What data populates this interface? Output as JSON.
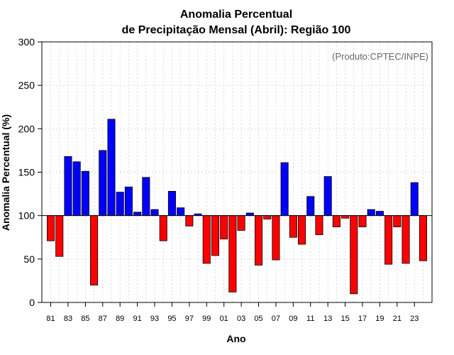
{
  "chart_data": {
    "type": "bar",
    "title": "Anomalia Percentual",
    "subtitle": "de Precipitação Mensal (Abril): Região 100",
    "xlabel": "Ano",
    "ylabel": "Anomalia Percentual (%)",
    "credit": "(Produto:CPTEC/INPE)",
    "baseline": 100,
    "ylim": [
      0,
      300
    ],
    "yticks": [
      0,
      50,
      100,
      150,
      200,
      250,
      300
    ],
    "grid": true,
    "categories": [
      "1981",
      "1982",
      "1983",
      "1984",
      "1985",
      "1986",
      "1987",
      "1988",
      "1989",
      "1990",
      "1991",
      "1992",
      "1993",
      "1994",
      "1995",
      "1996",
      "1997",
      "1998",
      "1999",
      "2000",
      "2001",
      "2002",
      "2003",
      "2004",
      "2005",
      "2006",
      "2007",
      "2008",
      "2009",
      "2010",
      "2011",
      "2012",
      "2013",
      "2014",
      "2015",
      "2016",
      "2017",
      "2018",
      "2019",
      "2020",
      "2021",
      "2022",
      "2023",
      "2024"
    ],
    "tick_labels": [
      "81",
      "83",
      "85",
      "87",
      "89",
      "91",
      "93",
      "95",
      "97",
      "99",
      "01",
      "03",
      "05",
      "07",
      "09",
      "11",
      "13",
      "15",
      "17",
      "19",
      "21",
      "23"
    ],
    "values": [
      71,
      53,
      168,
      162,
      151,
      20,
      175,
      211,
      127,
      133,
      104,
      144,
      107,
      71,
      128,
      109,
      88,
      102,
      45,
      54,
      73,
      12,
      83,
      103,
      43,
      96,
      49,
      161,
      75,
      67,
      122,
      78,
      145,
      87,
      97,
      10,
      87,
      107,
      105,
      44,
      87,
      45,
      138,
      48
    ],
    "colors": {
      "above": "#0000ff",
      "below": "#ff0000",
      "edge": "#000000"
    }
  }
}
